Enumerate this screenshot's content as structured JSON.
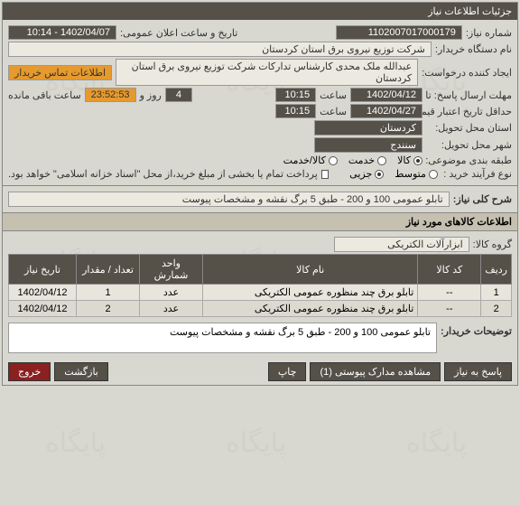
{
  "header": {
    "title": "جزئیات اطلاعات نیاز"
  },
  "info": {
    "req_no_label": "شماره نیاز:",
    "req_no": "1102007017000179",
    "announce_label": "تاریخ و ساعت اعلان عمومی:",
    "announce_value": "1402/04/07 - 10:14",
    "buyer_label": "نام دستگاه خریدار:",
    "buyer": "شرکت توزیع نیروی برق استان کردستان",
    "creator_label": "ایجاد کننده درخواست:",
    "creator": "عبدالله ملک محدی کارشناس تدارکات شرکت توزیع نیروی برق استان کردستان",
    "contact_link": "اطلاعات تماس خریدار",
    "deadline_label": "مهلت ارسال پاسخ: تا تاریخ:",
    "deadline_date": "1402/04/12",
    "time_label": "ساعت",
    "deadline_time": "10:15",
    "days": "4",
    "days_label": "روز و",
    "remaining": "23:52:53",
    "remaining_label": "ساعت باقی مانده",
    "credit_label": "حداقل تاریخ اعتبار قیمت: تا تاریخ:",
    "credit_date": "1402/04/27",
    "credit_time": "10:15",
    "province_label": "استان محل تحویل:",
    "province": "کردستان",
    "city_label": "شهر محل تحویل:",
    "city": "سنندج",
    "category_label": "طبقه بندی موضوعی:",
    "cat_goods": "کالا",
    "cat_service": "خدمت",
    "cat_both": "کالا/خدمت",
    "purchase_type_label": "نوع فرآیند خرید :",
    "type_medium": "متوسط",
    "type_partial": "جزیی",
    "payment_note": "پرداخت تمام یا بخشی از مبلغ خرید،از محل \"اسناد خزانه اسلامی\" خواهد بود."
  },
  "description": {
    "title_label": "شرح کلی نیاز:",
    "title_value": "تابلو عمومی 100 و 200 - طبق 5 برگ نقشه و مشخصات پیوست"
  },
  "goods": {
    "section_title": "اطلاعات کالاهای مورد نیاز",
    "group_label": "گروه کالا:",
    "group_value": "ابزارآلات الکتریکی",
    "columns": {
      "row": "ردیف",
      "code": "کد کالا",
      "name": "نام کالا",
      "unit": "واحد شمارش",
      "qty": "تعداد / مقدار",
      "date": "تاریخ نیاز"
    },
    "rows": [
      {
        "row": "1",
        "code": "--",
        "name": "تابلو برق چند منظوره عمومی الکتریکی",
        "unit": "عدد",
        "qty": "1",
        "date": "1402/04/12"
      },
      {
        "row": "2",
        "code": "--",
        "name": "تابلو برق چند منظوره عمومی الکتریکی",
        "unit": "عدد",
        "qty": "2",
        "date": "1402/04/12"
      }
    ]
  },
  "notes": {
    "label": "توضیحات خریدار:",
    "value": "تابلو عمومی 100 و 200 - طبق 5 برگ نقشه و مشخصات پیوست"
  },
  "footer": {
    "reply": "پاسخ به نیاز",
    "attachments": "مشاهده مدارک پیوستی (1)",
    "print": "چاپ",
    "back": "بازگشت",
    "exit": "خروج"
  }
}
